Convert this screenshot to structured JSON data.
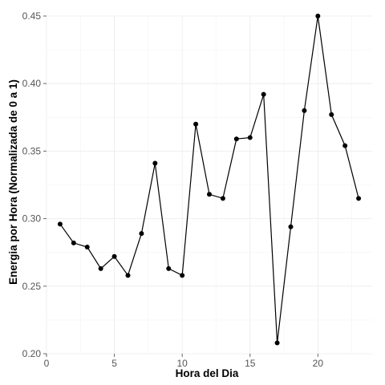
{
  "chart_data": {
    "type": "line",
    "title": "",
    "xlabel": "Hora del Dia",
    "ylabel": "Energia por Hora (Normalizada de 0 a 1)",
    "xlim": [
      0,
      24
    ],
    "ylim": [
      0.2,
      0.45
    ],
    "x_ticks": [
      0,
      5,
      10,
      15,
      20
    ],
    "y_ticks": [
      0.2,
      0.25,
      0.3,
      0.35,
      0.4,
      0.45
    ],
    "x_tick_labels": [
      "0",
      "5",
      "10",
      "15",
      "20"
    ],
    "y_tick_labels": [
      "0.20",
      "0.25",
      "0.30",
      "0.35",
      "0.40",
      "0.45"
    ],
    "grid": true,
    "legend": "none",
    "line_color": "#000000",
    "x": [
      1,
      2,
      3,
      4,
      5,
      6,
      7,
      8,
      9,
      10,
      11,
      12,
      13,
      14,
      15,
      16,
      17,
      18,
      19,
      20,
      21,
      22,
      23
    ],
    "series": [
      {
        "values": [
          0.296,
          0.282,
          0.279,
          0.263,
          0.272,
          0.258,
          0.289,
          0.341,
          0.263,
          0.258,
          0.37,
          0.318,
          0.315,
          0.359,
          0.36,
          0.392,
          0.208,
          0.294,
          0.38,
          0.45,
          0.377,
          0.354,
          0.315
        ]
      }
    ]
  }
}
